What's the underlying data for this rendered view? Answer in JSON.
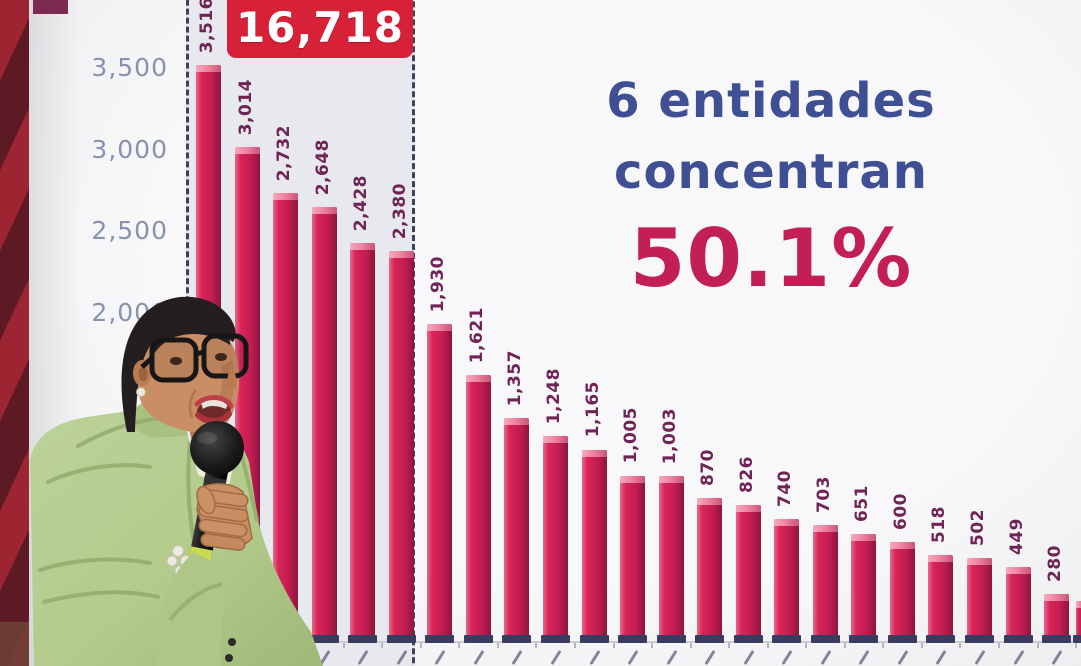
{
  "scene": {
    "speaker_alt": "Official in a light green blazer speaking into a handheld microphone in front of the chart screen",
    "x_axis_note": "rotated x-axis category labels are cropped at the bottom edge and illegible"
  },
  "annotation": {
    "line1": "6 entidades",
    "line2": "concentran",
    "percent": "50.1%"
  },
  "highlight_group": {
    "total_label": "16,718",
    "bars_included": 6
  },
  "chart_data": {
    "type": "bar",
    "title": "",
    "xlabel": "",
    "ylabel": "",
    "values": [
      3516,
      3014,
      2732,
      2648,
      2428,
      2380,
      1930,
      1621,
      1357,
      1248,
      1165,
      1005,
      1003,
      870,
      826,
      740,
      703,
      651,
      600,
      518,
      502,
      449,
      280
    ],
    "value_labels": [
      "3,516",
      "3,014",
      "2,732",
      "2,648",
      "2,428",
      "2,380",
      "1,930",
      "1,621",
      "1,357",
      "1,248",
      "1,165",
      "1,005",
      "1,003",
      "870",
      "826",
      "740",
      "703",
      "651",
      "600",
      "518",
      "502",
      "449",
      "280"
    ],
    "y_ticks": [
      {
        "label": "3,500",
        "value": 3500
      },
      {
        "label": "3,000",
        "value": 3000
      },
      {
        "label": "2,500",
        "value": 2500
      },
      {
        "label": "2,000",
        "value": 2000
      }
    ],
    "ylim": [
      0,
      3700
    ],
    "grid": false,
    "legend": false,
    "highlight": "first 6 bars enclosed in dashed box with group total 16,718",
    "x_tick_labels": "cropped / illegible at image bottom edge",
    "partial_bar_at_right_edge": true
  },
  "colors": {
    "bar": "#c41d52",
    "bar_bevel": "#ee7f9d",
    "bar_shadow": "#8e163d",
    "bar_base": "#383d60",
    "value_label": "#702355",
    "axis_label": "#8792ae",
    "headline_blue": "#3f4f94",
    "percent_red": "#c11f56",
    "badge_red": "#d62139",
    "dash_border": "#3d4258",
    "highlight_box_bg": "#e7e9ee",
    "screen_bg": "#f3f3f5",
    "wall_red": "#9c2531",
    "wall_dark": "#5d1a24",
    "blazer_green": "#b3cb8c"
  }
}
